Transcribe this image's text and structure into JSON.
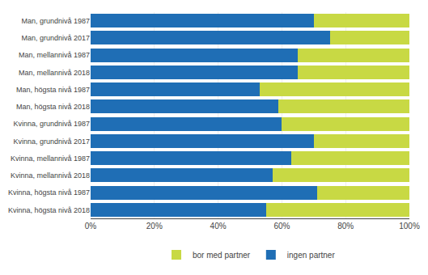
{
  "chart_data": {
    "type": "bar",
    "orientation": "horizontal",
    "stacked": true,
    "categories": [
      "Man, grundnivå 1987",
      "Man, grundnivå 2017",
      "Man, mellannivå 1987",
      "Man, mellannivå 2018",
      "Man, högsta nivå 1987",
      "Man, högsta nivå 2018",
      "Kvinna, grundnivå 1987",
      "Kvinna, grundnivå 2017",
      "Kvinna, mellannivå 1987",
      "Kvinna, mellannivå 2018",
      "Kvinna, högsta nivå 1987",
      "Kvinna, högsta nivå 2018"
    ],
    "series": [
      {
        "name": "ingen partner",
        "color": "#1f6eb5",
        "values": [
          70,
          75,
          65,
          65,
          53,
          59,
          60,
          70,
          63,
          57,
          71,
          55
        ]
      },
      {
        "name": "bor med partner",
        "color": "#c8d944",
        "values": [
          30,
          25,
          35,
          35,
          47,
          41,
          40,
          30,
          37,
          43,
          29,
          45
        ]
      }
    ],
    "xlim": [
      0,
      100
    ],
    "xticks": [
      {
        "value": 0,
        "label": "0%"
      },
      {
        "value": 20,
        "label": "20%"
      },
      {
        "value": 40,
        "label": "40%"
      },
      {
        "value": 60,
        "label": "60%"
      },
      {
        "value": 80,
        "label": "80%"
      },
      {
        "value": 100,
        "label": "100%"
      }
    ],
    "grid": true,
    "legend": "bottom"
  }
}
